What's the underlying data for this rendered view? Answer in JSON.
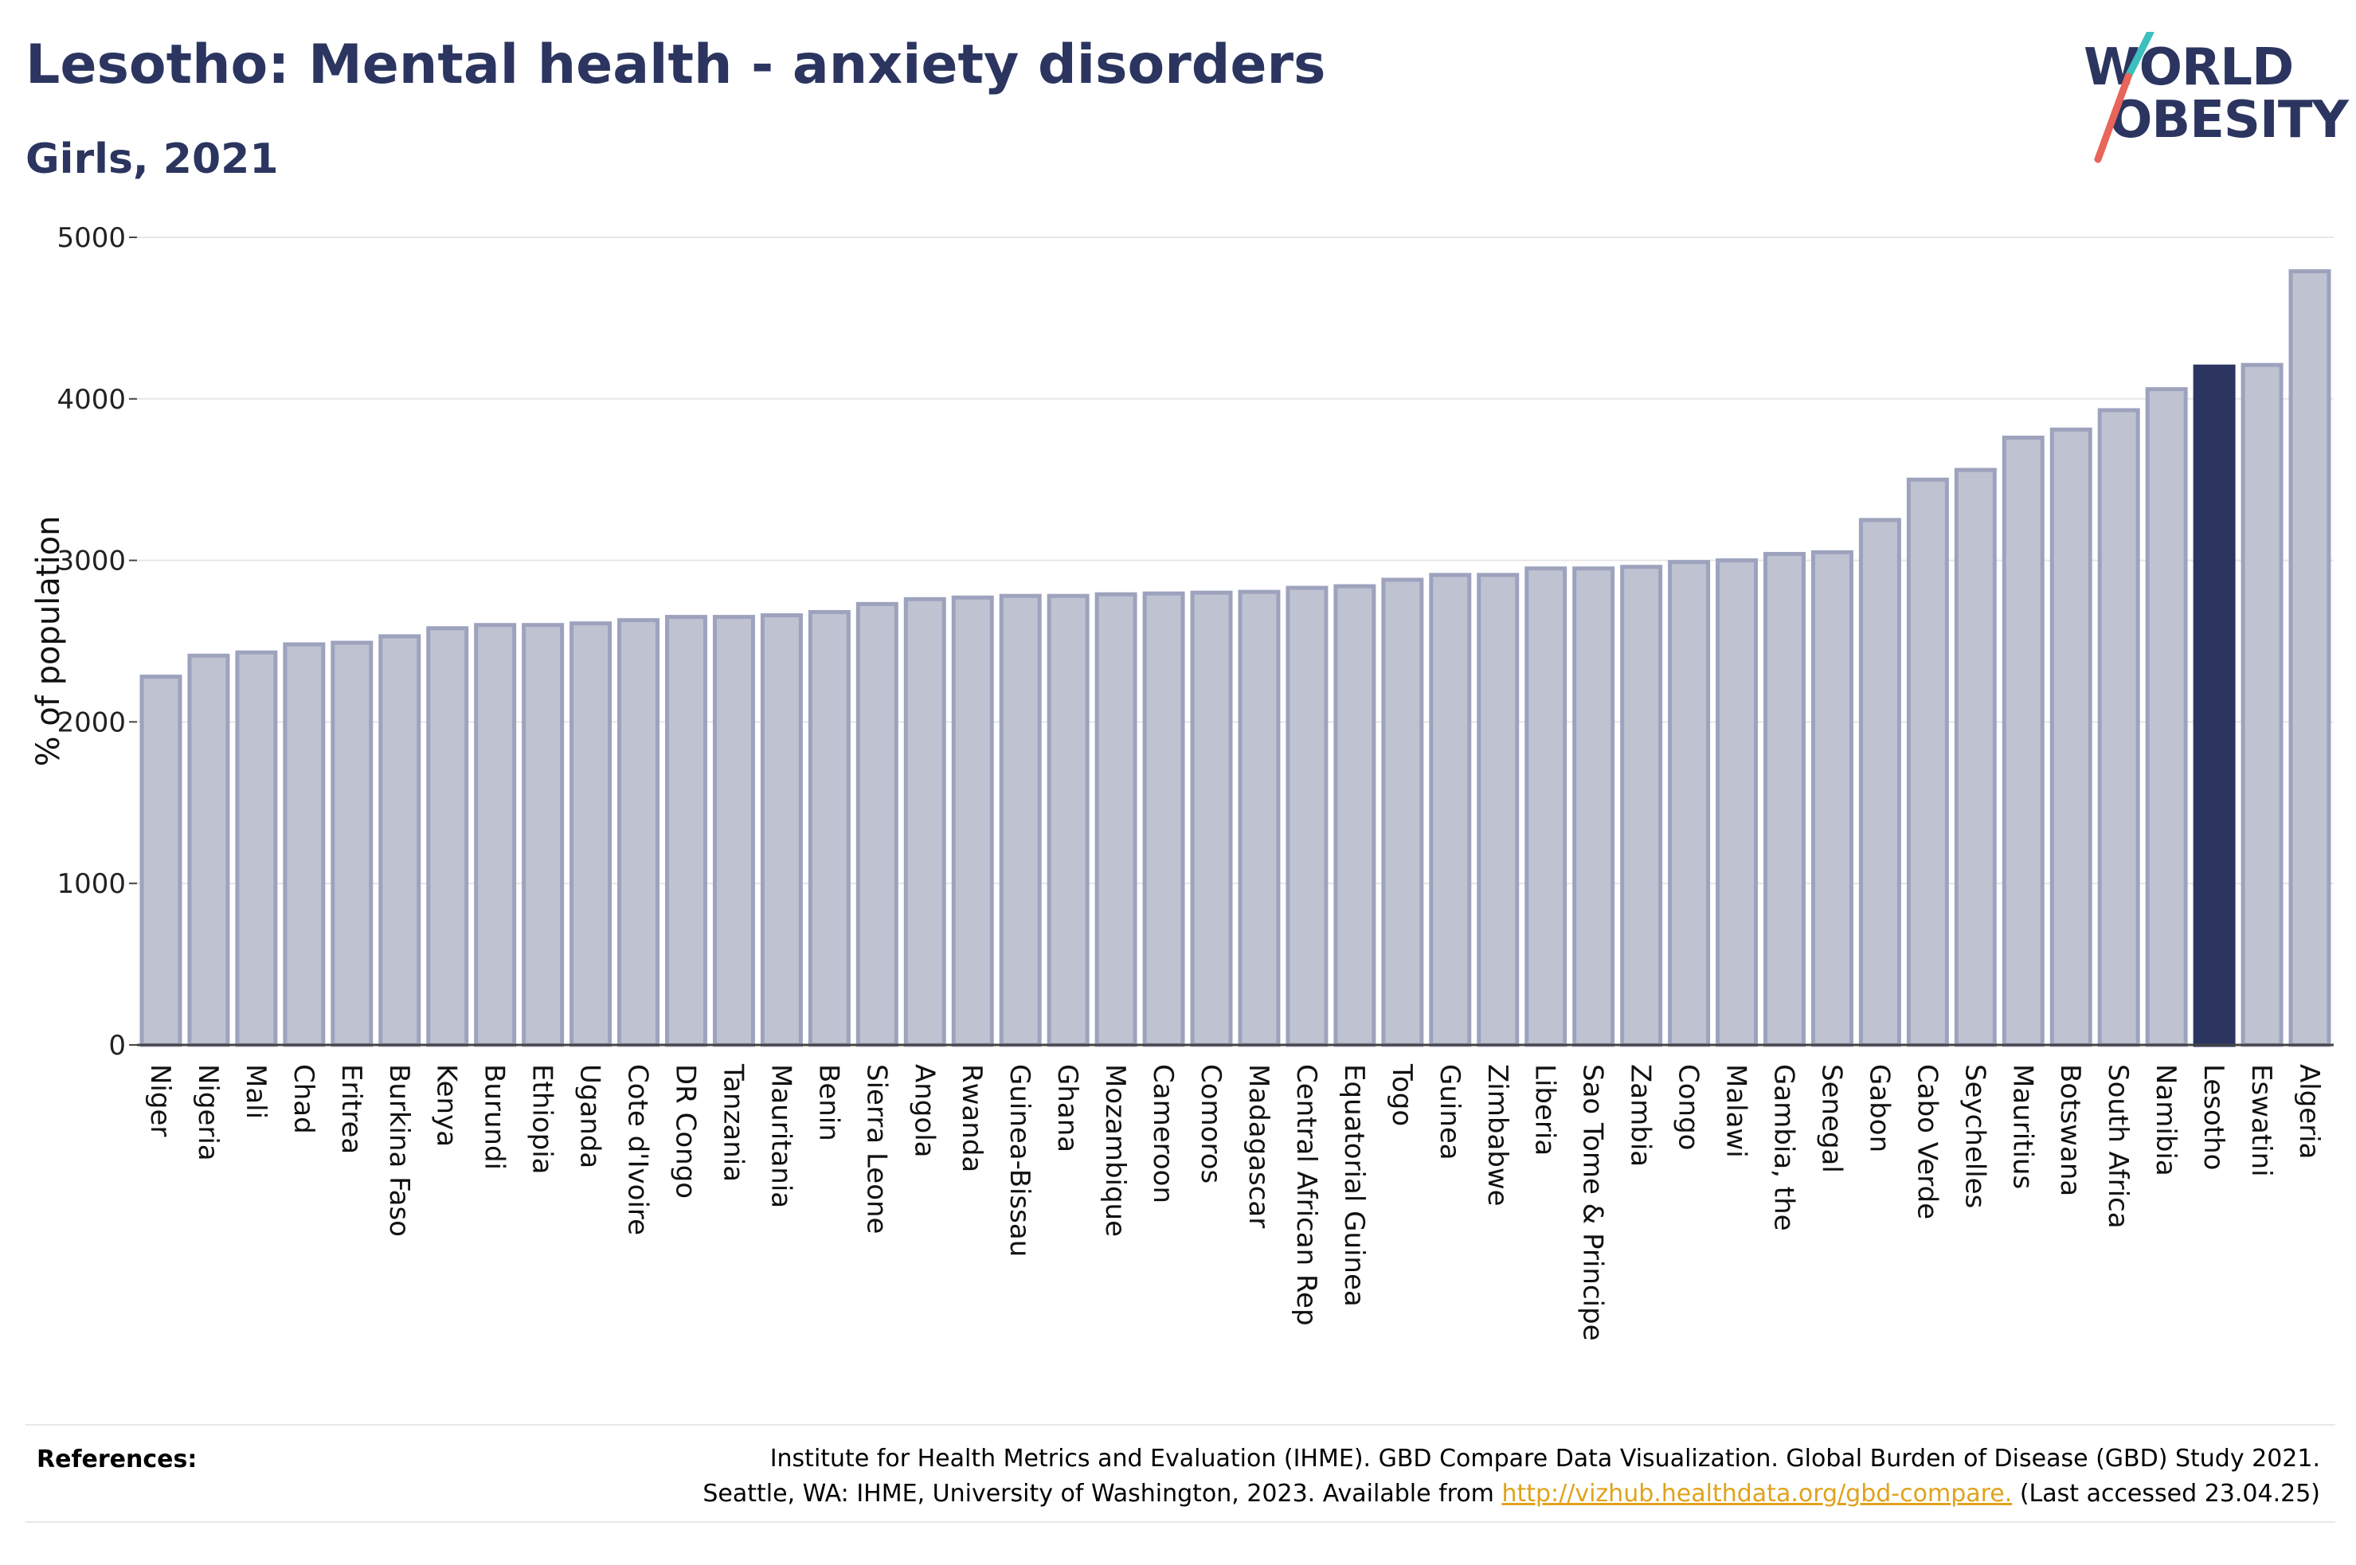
{
  "header": {
    "title": "Lesotho: Mental health - anxiety disorders",
    "subtitle": "Girls, 2021"
  },
  "logo": {
    "line1": "WORLD",
    "line2": "OBESITY",
    "colors": {
      "text": "#2b3560",
      "slash_top": "#3bbfbf",
      "slash_bottom": "#e8655a"
    }
  },
  "colors": {
    "bar_fill": "#bfc2d1",
    "bar_stroke": "#9da2bd",
    "highlight": "#2b3560",
    "grid": "#e6e6e6"
  },
  "chart_data": {
    "type": "bar",
    "ylabel": "% of population",
    "ylim": [
      0,
      5000
    ],
    "yticks": [
      0,
      1000,
      2000,
      3000,
      4000,
      5000
    ],
    "grid": true,
    "highlight": "Lesotho",
    "categories": [
      "Niger",
      "Nigeria",
      "Mali",
      "Chad",
      "Eritrea",
      "Burkina Faso",
      "Kenya",
      "Burundi",
      "Ethiopia",
      "Uganda",
      "Cote d'Ivoire",
      "DR Congo",
      "Tanzania",
      "Mauritania",
      "Benin",
      "Sierra Leone",
      "Angola",
      "Rwanda",
      "Guinea-Bissau",
      "Ghana",
      "Mozambique",
      "Cameroon",
      "Comoros",
      "Madagascar",
      "Central African Rep",
      "Equatorial Guinea",
      "Togo",
      "Guinea",
      "Zimbabwe",
      "Liberia",
      "Sao Tome & Principe",
      "Zambia",
      "Congo",
      "Malawi",
      "Gambia, the",
      "Senegal",
      "Gabon",
      "Cabo Verde",
      "Seychelles",
      "Mauritius",
      "Botswana",
      "South Africa",
      "Namibia",
      "Lesotho",
      "Eswatini",
      "Algeria"
    ],
    "values": [
      2280,
      2410,
      2430,
      2480,
      2490,
      2530,
      2580,
      2600,
      2600,
      2610,
      2630,
      2650,
      2650,
      2660,
      2680,
      2730,
      2760,
      2770,
      2780,
      2780,
      2790,
      2795,
      2800,
      2805,
      2830,
      2840,
      2880,
      2910,
      2910,
      2950,
      2950,
      2960,
      2990,
      3000,
      3040,
      3050,
      3250,
      3500,
      3560,
      3760,
      3810,
      3930,
      4060,
      4200,
      4210,
      4790
    ]
  },
  "references": {
    "label": "References:",
    "line1": "Institute for Health Metrics and Evaluation (IHME). GBD Compare Data Visualization. Global Burden of Disease (GBD) Study 2021.",
    "line2_pre": "Seattle, WA: IHME, University of Washington, 2023. Available from ",
    "link": "http://vizhub.healthdata.org/gbd-compare.",
    "line2_post": " (Last accessed 23.04.25)"
  }
}
